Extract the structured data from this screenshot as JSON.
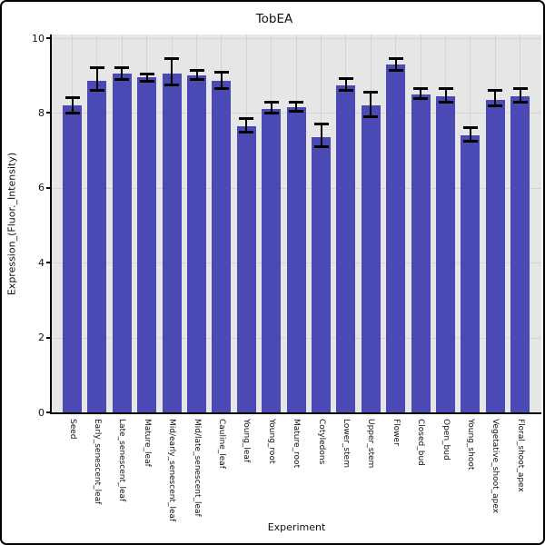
{
  "chart_data": {
    "type": "bar",
    "title": "TobEA",
    "xlabel": "Experiment",
    "ylabel": "Expression_(Fluor._Intensity)",
    "ylim": [
      0,
      10
    ],
    "yticks": [
      0,
      2,
      4,
      6,
      8,
      10
    ],
    "grid": true,
    "legend": "none",
    "categories": [
      "Seed",
      "Early_senescent_leaf",
      "Late_senescent_leaf",
      "Mature_leaf",
      "Mid/early_senescent_leaf",
      "Mid/late_senescent_leaf",
      "Cauline_leaf",
      "Young_leaf",
      "Young_root",
      "Mature_root",
      "Cotyledons",
      "Lower_stem",
      "Upper_stem",
      "Flower",
      "Closed_bud",
      "Open_bud",
      "Young_shoot",
      "Vegetative_shoot_apex",
      "Floral_shoot_apex"
    ],
    "values": [
      8.2,
      8.85,
      9.05,
      8.95,
      9.05,
      9.0,
      8.85,
      7.65,
      8.1,
      8.15,
      7.35,
      8.75,
      8.2,
      9.3,
      8.5,
      8.45,
      7.4,
      8.35,
      8.45
    ],
    "error_low": [
      8.0,
      8.6,
      8.9,
      8.85,
      8.75,
      8.9,
      8.65,
      7.5,
      8.0,
      8.05,
      7.1,
      8.6,
      7.9,
      9.15,
      8.38,
      8.3,
      7.25,
      8.2,
      8.3
    ],
    "error_high": [
      8.4,
      9.2,
      9.2,
      9.05,
      9.45,
      9.15,
      9.1,
      7.85,
      8.28,
      8.3,
      7.7,
      8.93,
      8.55,
      9.45,
      8.65,
      8.65,
      7.6,
      8.6,
      8.65
    ],
    "colors": {
      "bar_fill": "#4B4AB4",
      "plot_background": "#E6E6E6",
      "gridline": "#D4D4D4",
      "error_bar": "#000000",
      "axis": "#000000",
      "text": "#111111",
      "page_background": "#FFFFFF"
    }
  }
}
